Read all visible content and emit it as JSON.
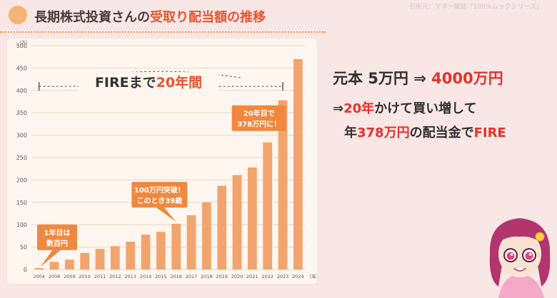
{
  "header": {
    "title_part1": "長期株式投資さんの",
    "title_accent": "受取り配当額の推移",
    "source_note": "引用元：マネー雑誌「100%ムックシリーズ」"
  },
  "chart_data": {
    "type": "bar",
    "y_unit": "（万）",
    "x_unit": "（年）",
    "categories": [
      "2004",
      "2008",
      "2009",
      "2010",
      "2011",
      "2012",
      "2013",
      "2014",
      "2015",
      "2016",
      "2017",
      "2018",
      "2019",
      "2020",
      "2021",
      "2022",
      "2023",
      "2024"
    ],
    "values": [
      3,
      17,
      22,
      37,
      46,
      52,
      62,
      78,
      84,
      102,
      121,
      150,
      187,
      211,
      228,
      284,
      378,
      470
    ],
    "ylim": [
      0,
      500
    ],
    "yticks": [
      0,
      50,
      100,
      150,
      200,
      250,
      300,
      350,
      400,
      450,
      500
    ],
    "bar_color": "#f2a46f",
    "grid": true,
    "annotations": {
      "fire_label_prefix": "FIREまで",
      "fire_label_years": "20年間",
      "callout_first_line1": "1年目は",
      "callout_first_line2": "数百円",
      "callout_100_line1": "100万円突破！",
      "callout_100_line2": "このとき39歳",
      "callout_20_line1": "20年目で",
      "callout_20_line2": "378万円に！"
    }
  },
  "summary": {
    "line1_prefix": "元本 5万円 ⇒ ",
    "line1_value": "4000万円",
    "line2_arrow": "⇒",
    "line2_red": "20年",
    "line2_rest": "かけて買い増して",
    "line3_prefix": "年",
    "line3_red1": "378万円",
    "line3_mid": "の配当金で",
    "line3_red2": "FIRE"
  }
}
